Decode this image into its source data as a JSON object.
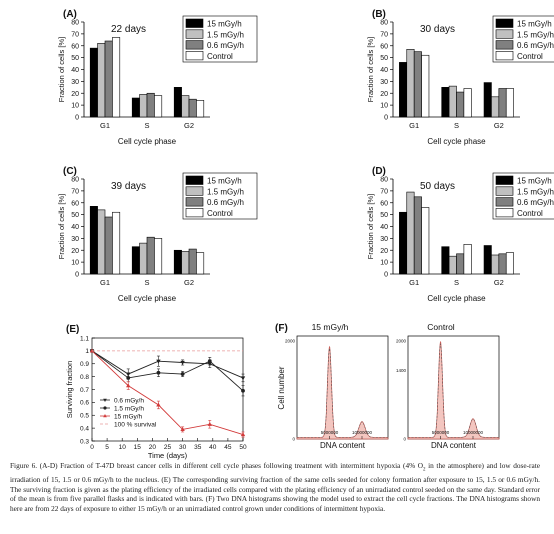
{
  "chart_data": [
    {
      "panel": "(A)",
      "type": "bar",
      "title": "22 days",
      "categories": [
        "G1",
        "S",
        "G2"
      ],
      "xlabel": "Cell cycle phase",
      "ylabel": "Fraction of cells [%]",
      "ylim": [
        0,
        80
      ],
      "yticks": [
        0,
        10,
        20,
        30,
        40,
        50,
        60,
        70,
        80
      ],
      "legend_position": "top-right",
      "series": [
        {
          "name": "15 mGy/h",
          "color": "#000000",
          "values": [
            58,
            16,
            25
          ]
        },
        {
          "name": "1.5 mGy/h",
          "color": "#c0c0c0",
          "values": [
            62,
            19,
            18
          ]
        },
        {
          "name": "0.6 mGy/h",
          "color": "#808080",
          "values": [
            64,
            20,
            15
          ]
        },
        {
          "name": "Control",
          "color": "#ffffff",
          "values": [
            67,
            18,
            14
          ]
        }
      ]
    },
    {
      "panel": "(B)",
      "type": "bar",
      "title": "30 days",
      "categories": [
        "G1",
        "S",
        "G2"
      ],
      "xlabel": "Cell cycle phase",
      "ylabel": "Fraction of cells [%]",
      "ylim": [
        0,
        80
      ],
      "yticks": [
        0,
        10,
        20,
        30,
        40,
        50,
        60,
        70,
        80
      ],
      "legend_position": "top-right",
      "series": [
        {
          "name": "15 mGy/h",
          "color": "#000000",
          "values": [
            46,
            25,
            29
          ]
        },
        {
          "name": "1.5 mGy/h",
          "color": "#c0c0c0",
          "values": [
            57,
            26,
            17
          ]
        },
        {
          "name": "0.6 mGy/h",
          "color": "#808080",
          "values": [
            55,
            21,
            24
          ]
        },
        {
          "name": "Control",
          "color": "#ffffff",
          "values": [
            52,
            24,
            24
          ]
        }
      ]
    },
    {
      "panel": "(C)",
      "type": "bar",
      "title": "39 days",
      "categories": [
        "G1",
        "S",
        "G2"
      ],
      "xlabel": "Cell cycle phase",
      "ylabel": "Fraction of cells [%]",
      "ylim": [
        0,
        80
      ],
      "yticks": [
        0,
        10,
        20,
        30,
        40,
        50,
        60,
        70,
        80
      ],
      "legend_position": "top-right",
      "series": [
        {
          "name": "15 mGy/h",
          "color": "#000000",
          "values": [
            57,
            23,
            20
          ]
        },
        {
          "name": "1.5 mGy/h",
          "color": "#c0c0c0",
          "values": [
            54,
            26,
            19
          ]
        },
        {
          "name": "0.6 mGy/h",
          "color": "#808080",
          "values": [
            48,
            31,
            21
          ]
        },
        {
          "name": "Control",
          "color": "#ffffff",
          "values": [
            52,
            30,
            18
          ]
        }
      ]
    },
    {
      "panel": "(D)",
      "type": "bar",
      "title": "50 days",
      "categories": [
        "G1",
        "S",
        "G2"
      ],
      "xlabel": "Cell cycle phase",
      "ylabel": "Fraction of cells [%]",
      "ylim": [
        0,
        80
      ],
      "yticks": [
        0,
        10,
        20,
        30,
        40,
        50,
        60,
        70,
        80
      ],
      "legend_position": "top-right",
      "series": [
        {
          "name": "15 mGy/h",
          "color": "#000000",
          "values": [
            52,
            23,
            24
          ]
        },
        {
          "name": "1.5 mGy/h",
          "color": "#c0c0c0",
          "values": [
            69,
            15,
            16
          ]
        },
        {
          "name": "0.6 mGy/h",
          "color": "#808080",
          "values": [
            65,
            17,
            17
          ]
        },
        {
          "name": "Control",
          "color": "#ffffff",
          "values": [
            56,
            25,
            18
          ]
        }
      ]
    },
    {
      "panel": "(E)",
      "type": "line",
      "xlabel": "Time (days)",
      "ylabel": "Surviving fraction",
      "xlim": [
        0,
        50
      ],
      "ylim": [
        0.3,
        1.1
      ],
      "xticks": [
        0,
        5,
        10,
        15,
        20,
        25,
        30,
        35,
        40,
        45,
        50
      ],
      "yticks": [
        0.3,
        0.4,
        0.5,
        0.6,
        0.7,
        0.8,
        0.9,
        1.0,
        1.1
      ],
      "legend_position": "bottom-left",
      "series": [
        {
          "name": "0.6 mGy/h",
          "marker": "triangle-down",
          "color": "#222222",
          "x": [
            0,
            12,
            22,
            30,
            39,
            50
          ],
          "y": [
            1.0,
            0.82,
            0.92,
            0.91,
            0.9,
            0.79
          ],
          "err": [
            0,
            0.04,
            0.04,
            0.02,
            0.03,
            0.03
          ]
        },
        {
          "name": "1.5 mGy/h",
          "marker": "circle",
          "color": "#222222",
          "x": [
            0,
            12,
            22,
            30,
            39,
            50
          ],
          "y": [
            1.0,
            0.79,
            0.83,
            0.82,
            0.92,
            0.69
          ],
          "err": [
            0,
            0.03,
            0.03,
            0.02,
            0.03,
            0.04
          ]
        },
        {
          "name": "15 mGy/h",
          "marker": "triangle-up",
          "color": "#d23a3a",
          "x": [
            0,
            12,
            22,
            30,
            39,
            50
          ],
          "y": [
            1.0,
            0.73,
            0.58,
            0.39,
            0.43,
            0.35
          ],
          "err": [
            0,
            0.03,
            0.03,
            0.02,
            0.03,
            0.02
          ]
        },
        {
          "name": "100 % survival",
          "marker": "none",
          "color": "#e89a9a",
          "dashed": true,
          "x": [
            0,
            50
          ],
          "y": [
            1.0,
            1.0
          ]
        }
      ]
    },
    {
      "panel": "(F)",
      "type": "area",
      "ylabel": "Cell number",
      "subplots": [
        {
          "title": "15 mGy/h",
          "xlabel": "DNA content",
          "xticks": [
            "5000000",
            "10000000"
          ],
          "yticks": [
            "0",
            "2000"
          ],
          "peaks": [
            {
              "x": 5000000,
              "height": 1850
            },
            {
              "x": 10000000,
              "height": 320
            }
          ]
        },
        {
          "title": "Control",
          "xlabel": "DNA content",
          "xticks": [
            "5000000",
            "10000000"
          ],
          "yticks": [
            "0",
            "1400",
            "2000"
          ],
          "peaks": [
            {
              "x": 5000000,
              "height": 1950
            },
            {
              "x": 10000000,
              "height": 380
            }
          ]
        }
      ]
    }
  ],
  "caption": {
    "lead": "Figure 6. (A-D) Fraction of T-47D breast cancer cells in different cell cycle phases following treatment with intermittent hypoxia (4% O",
    "sub": "2",
    "rest": " in the atmosphere) and low dose-rate irradiation of 15, 1.5 or 0.6 mGy/h to the nucleus. (E) The corresponding surviving fraction of the same cells seeded for colony formation after exposure to 15, 1.5 or 0.6 mGy/h. The surviving fraction is given as the plating efficiency of the irradiated cells compared with the plating efficiency of an unirradiated control seeded on the same day. Standard error of the mean is from five parallel flasks and is indicated with bars. (F) Two DNA histograms showing the model used to extract the cell cycle fractions. The DNA histograms shown here are from 22 days of exposure to either 15 mGy/h or an unirradiated control grown under conditions of intermittent hypoxia."
  }
}
